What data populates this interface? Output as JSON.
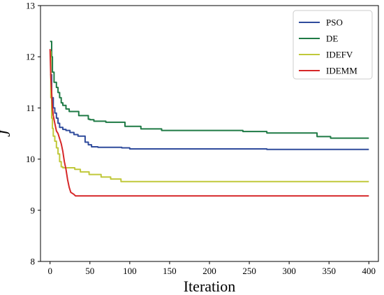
{
  "chart_data": {
    "type": "line",
    "title": "",
    "xlabel": "Iteration",
    "ylabel": "J",
    "xlim": [
      -12,
      412
    ],
    "ylim": [
      8,
      13
    ],
    "xticks": [
      0,
      50,
      100,
      150,
      200,
      250,
      300,
      350,
      400
    ],
    "yticks": [
      8,
      9,
      10,
      11,
      12,
      13
    ],
    "grid": false,
    "legend_position": "top-right",
    "series": [
      {
        "name": "PSO",
        "color": "#2f4b9c",
        "step": true,
        "points": [
          [
            0,
            11.65
          ],
          [
            2,
            11.2
          ],
          [
            4,
            11.0
          ],
          [
            6,
            10.9
          ],
          [
            8,
            10.8
          ],
          [
            10,
            10.7
          ],
          [
            12,
            10.62
          ],
          [
            16,
            10.58
          ],
          [
            20,
            10.56
          ],
          [
            25,
            10.52
          ],
          [
            30,
            10.48
          ],
          [
            35,
            10.45
          ],
          [
            42,
            10.45
          ],
          [
            44,
            10.33
          ],
          [
            48,
            10.28
          ],
          [
            52,
            10.24
          ],
          [
            60,
            10.23
          ],
          [
            80,
            10.23
          ],
          [
            90,
            10.22
          ],
          [
            100,
            10.2
          ],
          [
            150,
            10.2
          ],
          [
            270,
            10.2
          ],
          [
            272,
            10.19
          ],
          [
            400,
            10.19
          ]
        ]
      },
      {
        "name": "DE",
        "color": "#1f7a45",
        "step": true,
        "points": [
          [
            0,
            12.3
          ],
          [
            2,
            12.0
          ],
          [
            3,
            11.7
          ],
          [
            5,
            11.5
          ],
          [
            8,
            11.4
          ],
          [
            10,
            11.3
          ],
          [
            12,
            11.2
          ],
          [
            14,
            11.1
          ],
          [
            16,
            11.05
          ],
          [
            20,
            10.98
          ],
          [
            24,
            10.93
          ],
          [
            35,
            10.93
          ],
          [
            36,
            10.85
          ],
          [
            45,
            10.85
          ],
          [
            48,
            10.78
          ],
          [
            50,
            10.77
          ],
          [
            55,
            10.74
          ],
          [
            68,
            10.74
          ],
          [
            70,
            10.72
          ],
          [
            92,
            10.72
          ],
          [
            94,
            10.64
          ],
          [
            112,
            10.64
          ],
          [
            114,
            10.59
          ],
          [
            138,
            10.59
          ],
          [
            140,
            10.56
          ],
          [
            240,
            10.56
          ],
          [
            242,
            10.54
          ],
          [
            270,
            10.54
          ],
          [
            272,
            10.51
          ],
          [
            333,
            10.51
          ],
          [
            335,
            10.44
          ],
          [
            350,
            10.44
          ],
          [
            352,
            10.41
          ],
          [
            400,
            10.41
          ]
        ]
      },
      {
        "name": "IDEFV",
        "color": "#c0c83a",
        "step": true,
        "points": [
          [
            0,
            12.1
          ],
          [
            1,
            11.2
          ],
          [
            2,
            10.8
          ],
          [
            3,
            10.6
          ],
          [
            4,
            10.45
          ],
          [
            6,
            10.35
          ],
          [
            8,
            10.22
          ],
          [
            10,
            10.1
          ],
          [
            12,
            9.95
          ],
          [
            14,
            9.85
          ],
          [
            16,
            9.83
          ],
          [
            30,
            9.83
          ],
          [
            31,
            9.8
          ],
          [
            37,
            9.8
          ],
          [
            38,
            9.75
          ],
          [
            48,
            9.75
          ],
          [
            49,
            9.7
          ],
          [
            63,
            9.7
          ],
          [
            64,
            9.65
          ],
          [
            75,
            9.65
          ],
          [
            76,
            9.61
          ],
          [
            88,
            9.61
          ],
          [
            89,
            9.56
          ],
          [
            400,
            9.56
          ]
        ]
      },
      {
        "name": "IDEMM",
        "color": "#d62728",
        "step": false,
        "points": [
          [
            0,
            12.15
          ],
          [
            1,
            11.6
          ],
          [
            2,
            11.3
          ],
          [
            3,
            11.0
          ],
          [
            4,
            10.85
          ],
          [
            6,
            10.7
          ],
          [
            8,
            10.55
          ],
          [
            10,
            10.5
          ],
          [
            12,
            10.4
          ],
          [
            14,
            10.3
          ],
          [
            16,
            10.15
          ],
          [
            18,
            9.95
          ],
          [
            20,
            9.8
          ],
          [
            22,
            9.6
          ],
          [
            24,
            9.45
          ],
          [
            26,
            9.35
          ],
          [
            28,
            9.33
          ],
          [
            30,
            9.31
          ],
          [
            32,
            9.28
          ],
          [
            100,
            9.28
          ],
          [
            400,
            9.28
          ]
        ]
      }
    ]
  }
}
